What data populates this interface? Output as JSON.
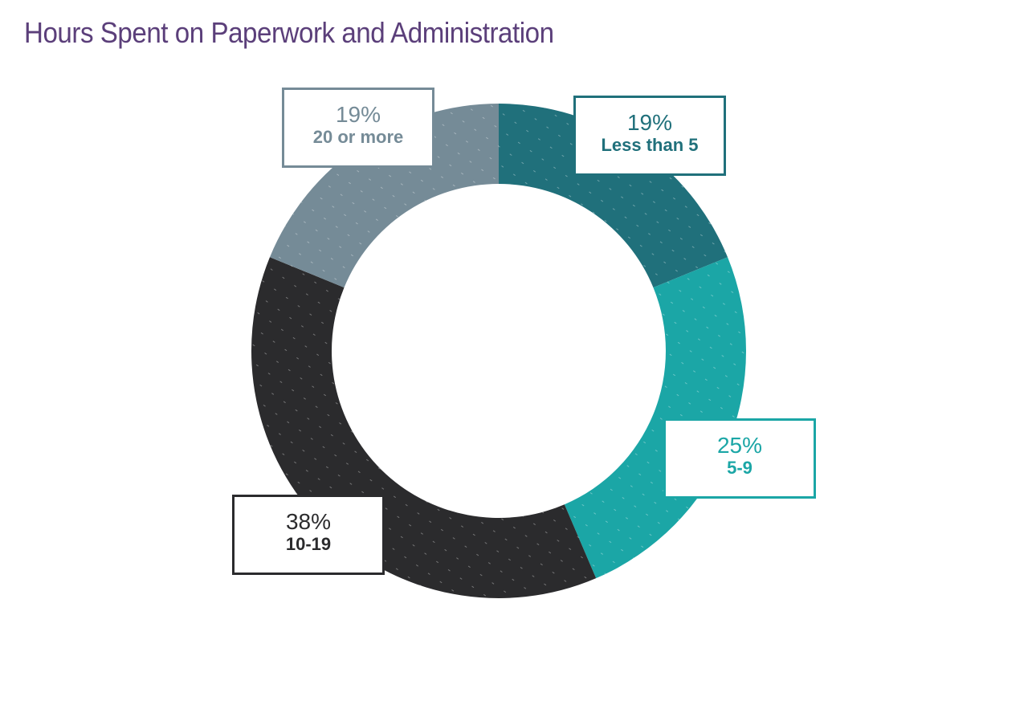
{
  "chart_data": {
    "type": "pie",
    "variant": "donut",
    "title": "Hours Spent on Paperwork and Administration",
    "slices": [
      {
        "label": "Less than 5",
        "value": 19,
        "display": "19%",
        "color": "#20707b"
      },
      {
        "label": "5-9",
        "value": 25,
        "display": "25%",
        "color": "#1ba6a6"
      },
      {
        "label": "10-19",
        "value": 38,
        "display": "38%",
        "color": "#2b2b2d"
      },
      {
        "label": "20 or more",
        "value": 19,
        "display": "19%",
        "color": "#758b97"
      }
    ],
    "start": "top",
    "direction": "clockwise"
  }
}
